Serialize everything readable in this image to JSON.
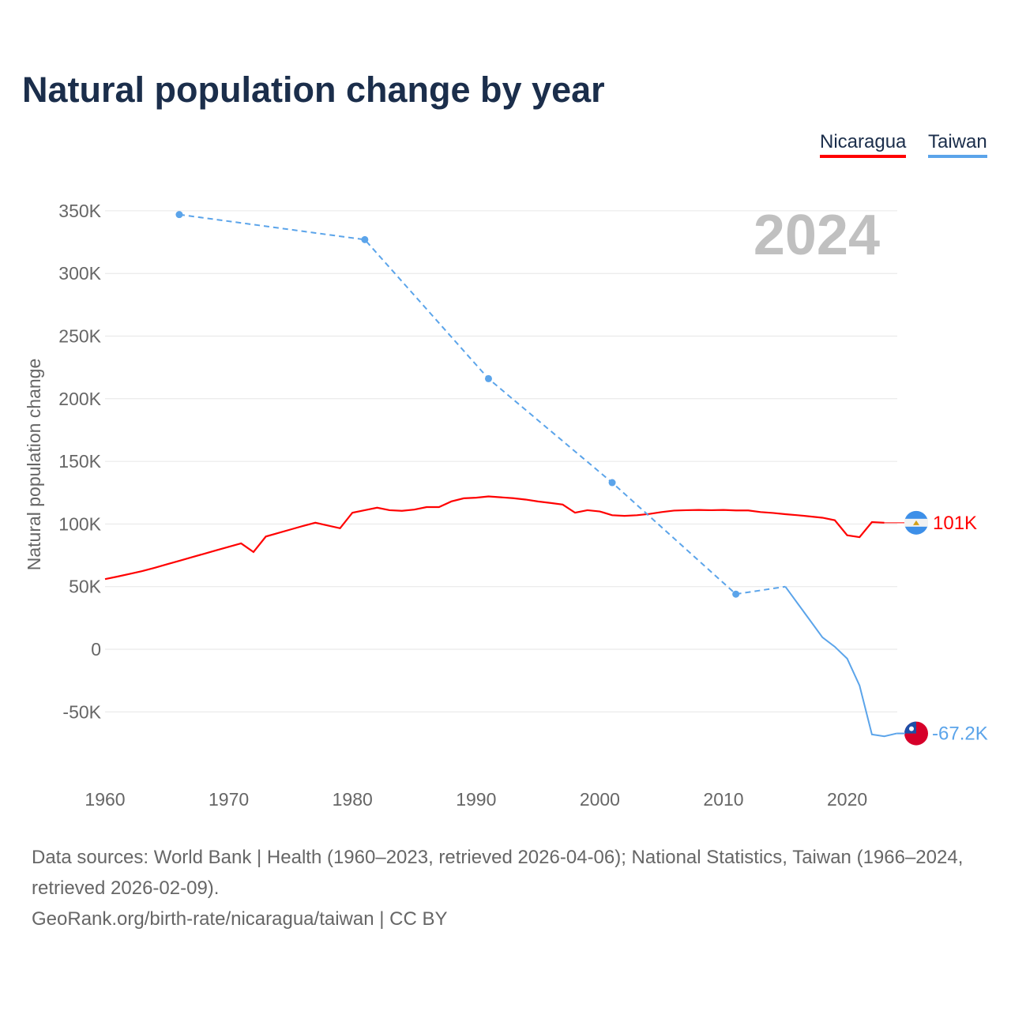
{
  "title": "Natural population change by year",
  "legend": {
    "nicaragua": "Nicaragua",
    "taiwan": "Taiwan"
  },
  "footer": {
    "sources": "Data sources: World Bank | Health (1960–2023, retrieved 2026-04-06); National Statistics, Taiwan (1966–2024, retrieved 2026-02-09).",
    "link": "GeoRank.org/birth-rate/nicaragua/taiwan | CC BY"
  },
  "chart_data": {
    "type": "line",
    "year_label": "2024",
    "ylabel": "Natural population change",
    "xlim": [
      1960,
      2024
    ],
    "ylim": [
      -80000,
      355000
    ],
    "xticks": [
      1960,
      1970,
      1980,
      1990,
      2000,
      2010,
      2020
    ],
    "yticks": [
      {
        "v": 350000,
        "l": "350K"
      },
      {
        "v": 300000,
        "l": "300K"
      },
      {
        "v": 250000,
        "l": "250K"
      },
      {
        "v": 200000,
        "l": "200K"
      },
      {
        "v": 150000,
        "l": "150K"
      },
      {
        "v": 100000,
        "l": "100K"
      },
      {
        "v": 50000,
        "l": "50K"
      },
      {
        "v": 0,
        "l": "0"
      },
      {
        "v": -50000,
        "l": "-50K"
      }
    ],
    "series": [
      {
        "name": "Nicaragua",
        "color": "#ff0000",
        "end_label": "101K",
        "end_value": 101000,
        "x": [
          1960,
          1961,
          1962,
          1963,
          1964,
          1965,
          1966,
          1967,
          1968,
          1969,
          1970,
          1971,
          1972,
          1973,
          1974,
          1975,
          1976,
          1977,
          1978,
          1979,
          1980,
          1981,
          1982,
          1983,
          1984,
          1985,
          1986,
          1987,
          1988,
          1989,
          1990,
          1991,
          1992,
          1993,
          1994,
          1995,
          1996,
          1997,
          1998,
          1999,
          2000,
          2001,
          2002,
          2003,
          2004,
          2005,
          2006,
          2007,
          2008,
          2009,
          2010,
          2011,
          2012,
          2013,
          2014,
          2015,
          2016,
          2017,
          2018,
          2019,
          2020,
          2021,
          2022,
          2023
        ],
        "y": [
          56000,
          58000,
          60200,
          62400,
          65000,
          67800,
          70600,
          73400,
          76200,
          79000,
          81800,
          84500,
          77600,
          90000,
          92800,
          95600,
          98400,
          101000,
          98800,
          96600,
          109000,
          111000,
          113000,
          111000,
          110500,
          111500,
          113500,
          113500,
          118000,
          120500,
          121000,
          122000,
          121300,
          120600,
          119500,
          118000,
          116800,
          115500,
          109000,
          111000,
          110000,
          107000,
          106500,
          107000,
          108000,
          109500,
          110700,
          111000,
          111200,
          111000,
          111200,
          110800,
          110800,
          109500,
          108800,
          107800,
          107000,
          106000,
          105000,
          103000,
          91000,
          89500,
          101500,
          101000
        ]
      },
      {
        "name": "Taiwan",
        "color": "#5ba4ea",
        "end_label": "-67.2K",
        "end_value": -67200,
        "solid_from": 2015,
        "x": [
          1966,
          1981,
          1991,
          2001,
          2011,
          2015,
          2016,
          2017,
          2018,
          2019,
          2020,
          2021,
          2022,
          2023,
          2024
        ],
        "y": [
          347000,
          327000,
          216000,
          133000,
          44000,
          50000,
          36500,
          23000,
          9500,
          2000,
          -7500,
          -29000,
          -68000,
          -69500,
          -67200
        ]
      }
    ]
  }
}
